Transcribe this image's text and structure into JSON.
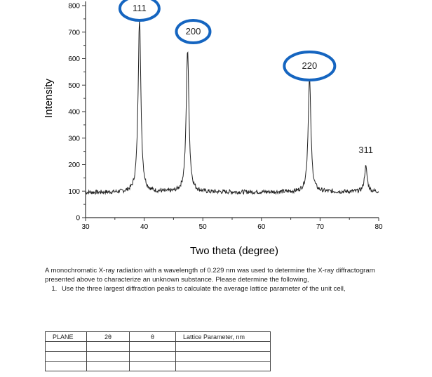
{
  "chart_data": {
    "type": "line",
    "xlabel": "Two theta (degree)",
    "ylabel": "Intensity",
    "xlim": [
      30,
      80
    ],
    "ylim": [
      0,
      800
    ],
    "xticks": [
      30,
      40,
      50,
      60,
      70,
      80
    ],
    "yticks": [
      0,
      100,
      200,
      300,
      400,
      500,
      600,
      700,
      800
    ],
    "grid": false,
    "background": 95,
    "noise_amplitude": 8,
    "peaks": [
      {
        "label": "111",
        "two_theta": 39.2,
        "intensity": 755,
        "circled": true
      },
      {
        "label": "200",
        "two_theta": 47.4,
        "intensity": 635,
        "circled": true
      },
      {
        "label": "220",
        "two_theta": 68.2,
        "intensity": 525,
        "circled": true
      },
      {
        "label": "311",
        "two_theta": 77.8,
        "intensity": 190,
        "circled": false
      }
    ],
    "line_color": "#222222",
    "annotation_color": "#1565c0"
  },
  "question": {
    "intro": "A monochromatic X-ray radiation with a wavelength of 0.229 nm was used to determine the X-ray diffractogram presented above to characterize an unknown substance. Please determine the following,",
    "items": [
      "Use the three largest diffraction peaks to calculate the average lattice parameter of the unit cell,"
    ]
  },
  "table": {
    "headers": [
      "PLANE",
      "2θ",
      "θ",
      "Lattice Parameter, nm"
    ],
    "rows": [
      [
        "",
        "",
        "",
        ""
      ],
      [
        "",
        "",
        "",
        ""
      ],
      [
        "",
        "",
        "",
        ""
      ]
    ]
  }
}
